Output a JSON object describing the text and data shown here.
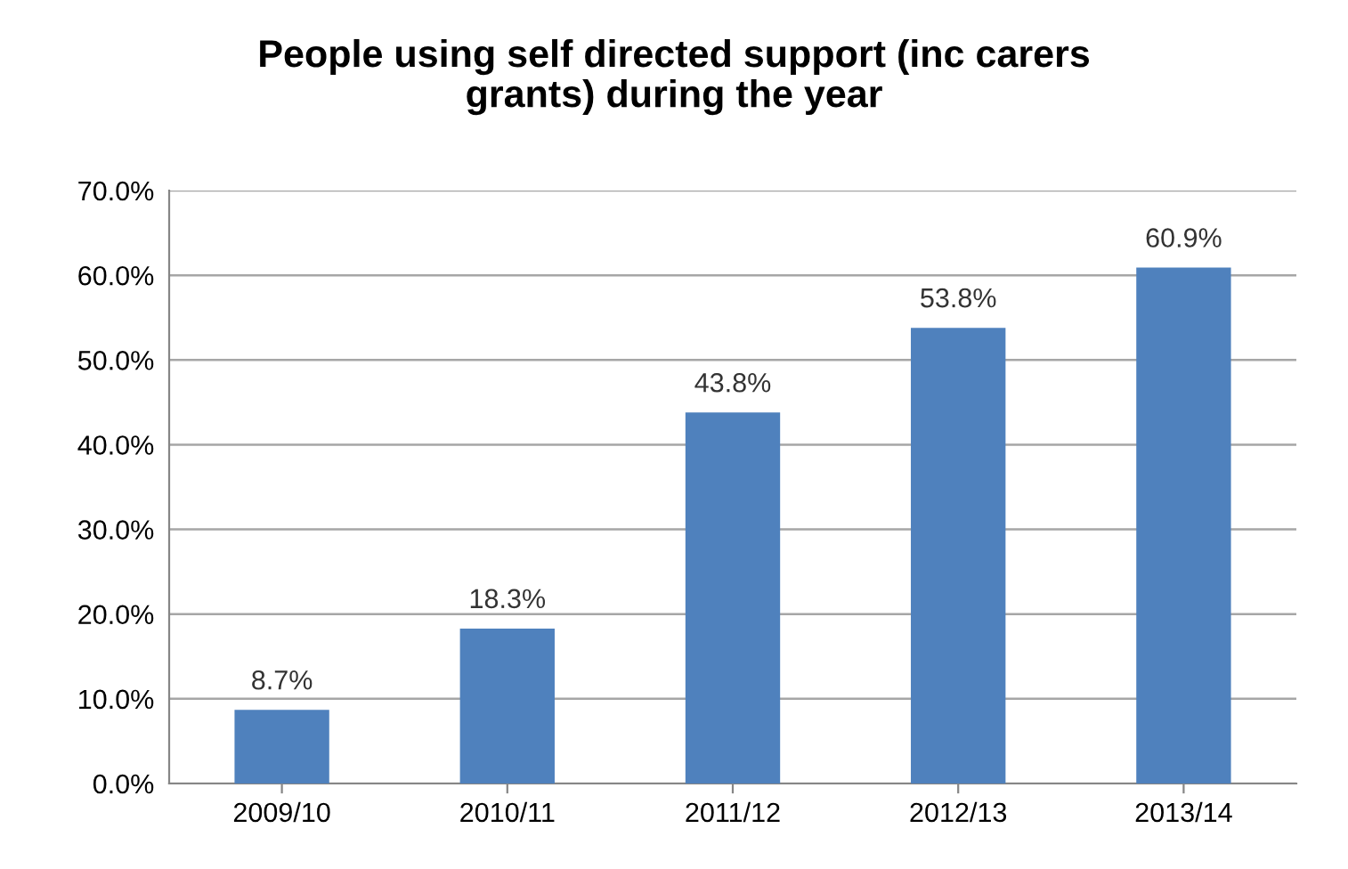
{
  "chart_data": {
    "type": "bar",
    "title": "People using self directed support (inc carers\ngrants) during the year",
    "categories": [
      "2009/10",
      "2010/11",
      "2011/12",
      "2012/13",
      "2013/14"
    ],
    "values": [
      8.7,
      18.3,
      43.8,
      53.8,
      60.9
    ],
    "value_labels": [
      "8.7%",
      "18.3%",
      "43.8%",
      "53.8%",
      "60.9%"
    ],
    "color": "#4f81bd",
    "ylim": [
      0,
      70
    ],
    "yticks": [
      {
        "value": 0,
        "label": "0.0%"
      },
      {
        "value": 10,
        "label": "10.0%"
      },
      {
        "value": 20,
        "label": "20.0%"
      },
      {
        "value": 30,
        "label": "30.0%"
      },
      {
        "value": 40,
        "label": "40.0%"
      },
      {
        "value": 50,
        "label": "50.0%"
      },
      {
        "value": 60,
        "label": "60.0%"
      },
      {
        "value": 70,
        "label": "70.0%"
      }
    ],
    "grid": "y",
    "legend": false
  }
}
